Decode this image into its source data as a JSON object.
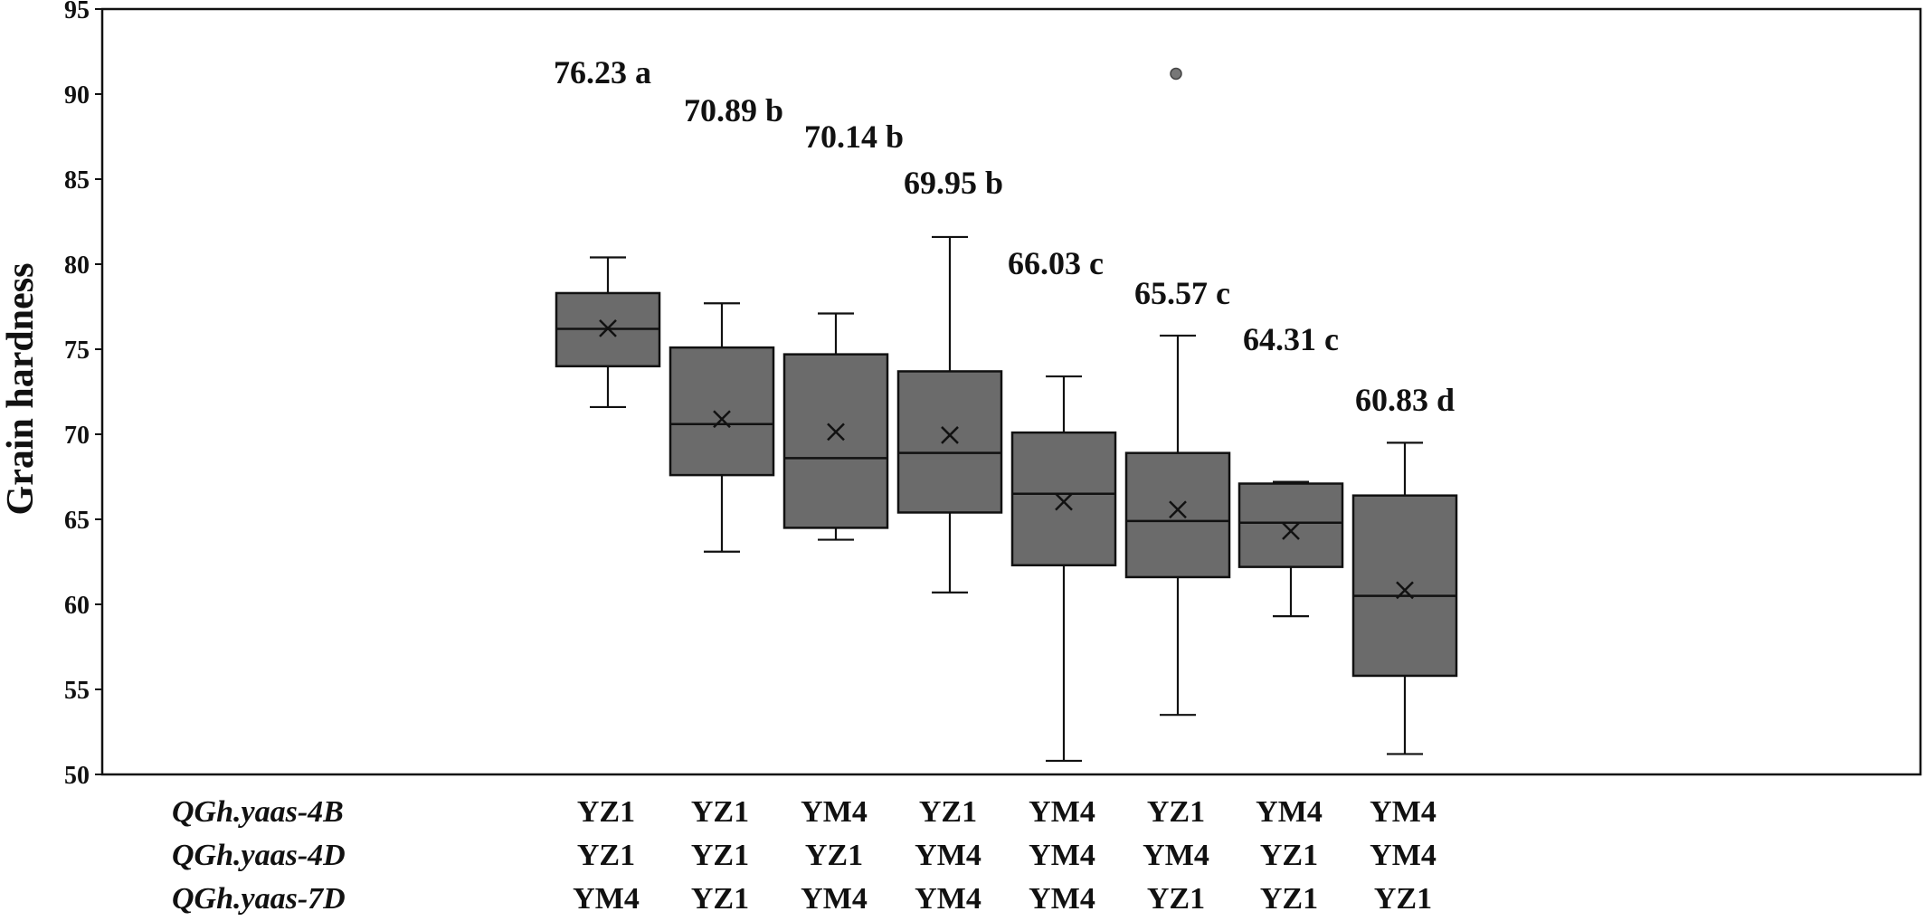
{
  "chart_data": {
    "type": "box",
    "ylabel": "Grain hardness",
    "ylim": [
      50,
      95
    ],
    "yticks": [
      "50",
      "55",
      "60",
      "65",
      "70",
      "75",
      "80",
      "85",
      "90",
      "95"
    ],
    "colors": {
      "box_fill": "#6b6b6b",
      "stroke": "#111111",
      "outlier": "#777777"
    },
    "groups": [
      {
        "min": 71.6,
        "q1": 74.0,
        "median": 76.2,
        "q3": 78.3,
        "max": 80.4,
        "mean": 76.23,
        "label": "76.23 a",
        "outliers": []
      },
      {
        "min": 63.1,
        "q1": 67.6,
        "median": 70.6,
        "q3": 75.1,
        "max": 77.7,
        "mean": 70.89,
        "label": "70.89 b",
        "outliers": []
      },
      {
        "min": 63.8,
        "q1": 64.5,
        "median": 68.6,
        "q3": 74.7,
        "max": 77.1,
        "mean": 70.14,
        "label": "70.14 b",
        "outliers": []
      },
      {
        "min": 60.7,
        "q1": 65.4,
        "median": 68.9,
        "q3": 73.7,
        "max": 81.6,
        "mean": 69.95,
        "label": "69.95 b",
        "outliers": []
      },
      {
        "min": 50.8,
        "q1": 62.3,
        "median": 66.5,
        "q3": 70.1,
        "max": 73.4,
        "mean": 66.03,
        "label": "66.03 c",
        "outliers": []
      },
      {
        "min": 53.5,
        "q1": 61.6,
        "median": 64.9,
        "q3": 68.9,
        "max": 75.8,
        "mean": 65.57,
        "label": "65.57 c",
        "outliers": [
          91.2
        ]
      },
      {
        "min": 59.3,
        "q1": 62.2,
        "median": 64.8,
        "q3": 67.1,
        "max": 67.2,
        "mean": 64.31,
        "label": "64.31 c",
        "outliers": []
      },
      {
        "min": 51.2,
        "q1": 55.8,
        "median": 60.5,
        "q3": 66.4,
        "max": 69.5,
        "mean": 60.83,
        "label": "60.83 d",
        "outliers": []
      }
    ],
    "genotype_rows": [
      {
        "name": "QGh.yaas-4B",
        "values": [
          "YZ1",
          "YZ1",
          "YM4",
          "YZ1",
          "YM4",
          "YZ1",
          "YM4",
          "YM4"
        ]
      },
      {
        "name": "QGh.yaas-4D",
        "values": [
          "YZ1",
          "YZ1",
          "YZ1",
          "YM4",
          "YM4",
          "YM4",
          "YZ1",
          "YM4"
        ]
      },
      {
        "name": "QGh.yaas-7D",
        "values": [
          "YM4",
          "YZ1",
          "YM4",
          "YM4",
          "YM4",
          "YZ1",
          "YZ1",
          "YZ1"
        ]
      }
    ]
  }
}
